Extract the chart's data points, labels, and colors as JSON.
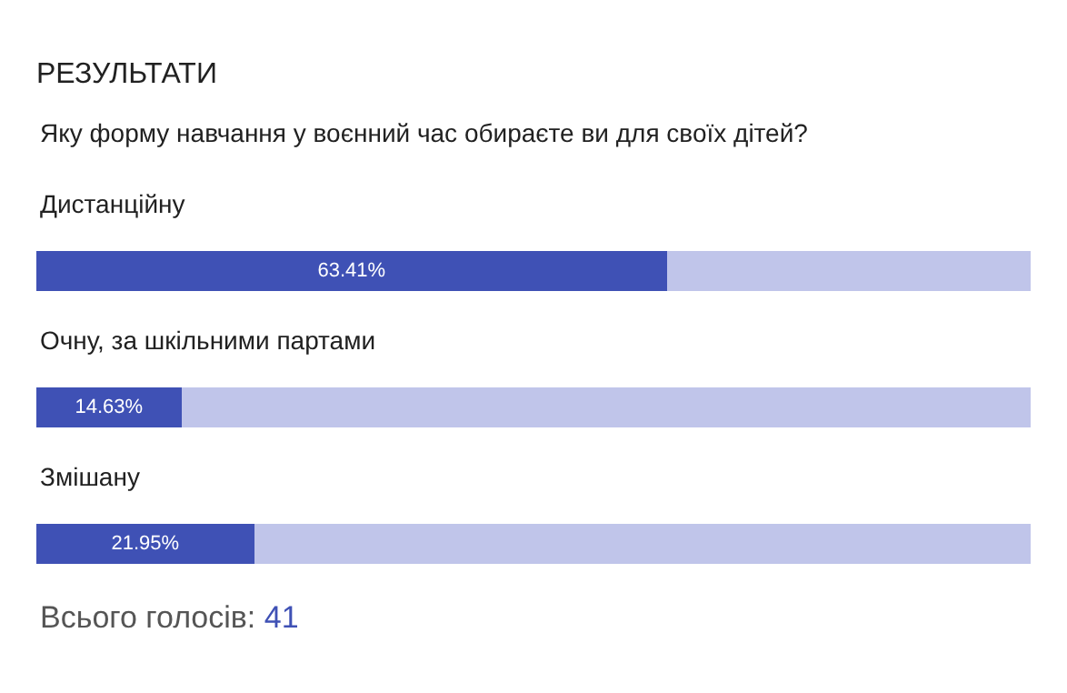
{
  "chart_data": {
    "type": "bar",
    "orientation": "horizontal",
    "stacked": true,
    "title": "РЕЗУЛЬТАТИ",
    "subtitle": "Яку форму навчання у воєнний час обираєте ви для своїх дітей?",
    "categories": [
      "Дистанційну",
      "Очну, за шкільними партами",
      "Змішану"
    ],
    "series": [
      {
        "color": "#3f51b5",
        "values": [
          63.41,
          14.63,
          21.95
        ],
        "value_labels": [
          "63.41%",
          "14.63%",
          "21.95%"
        ]
      },
      {
        "color": "#c0c5ea",
        "values": [
          36.59,
          85.37,
          78.05
        ]
      }
    ],
    "xlim": [
      0,
      100
    ],
    "legend": false,
    "annotations": [
      "Всього голосів: 41"
    ]
  }
}
